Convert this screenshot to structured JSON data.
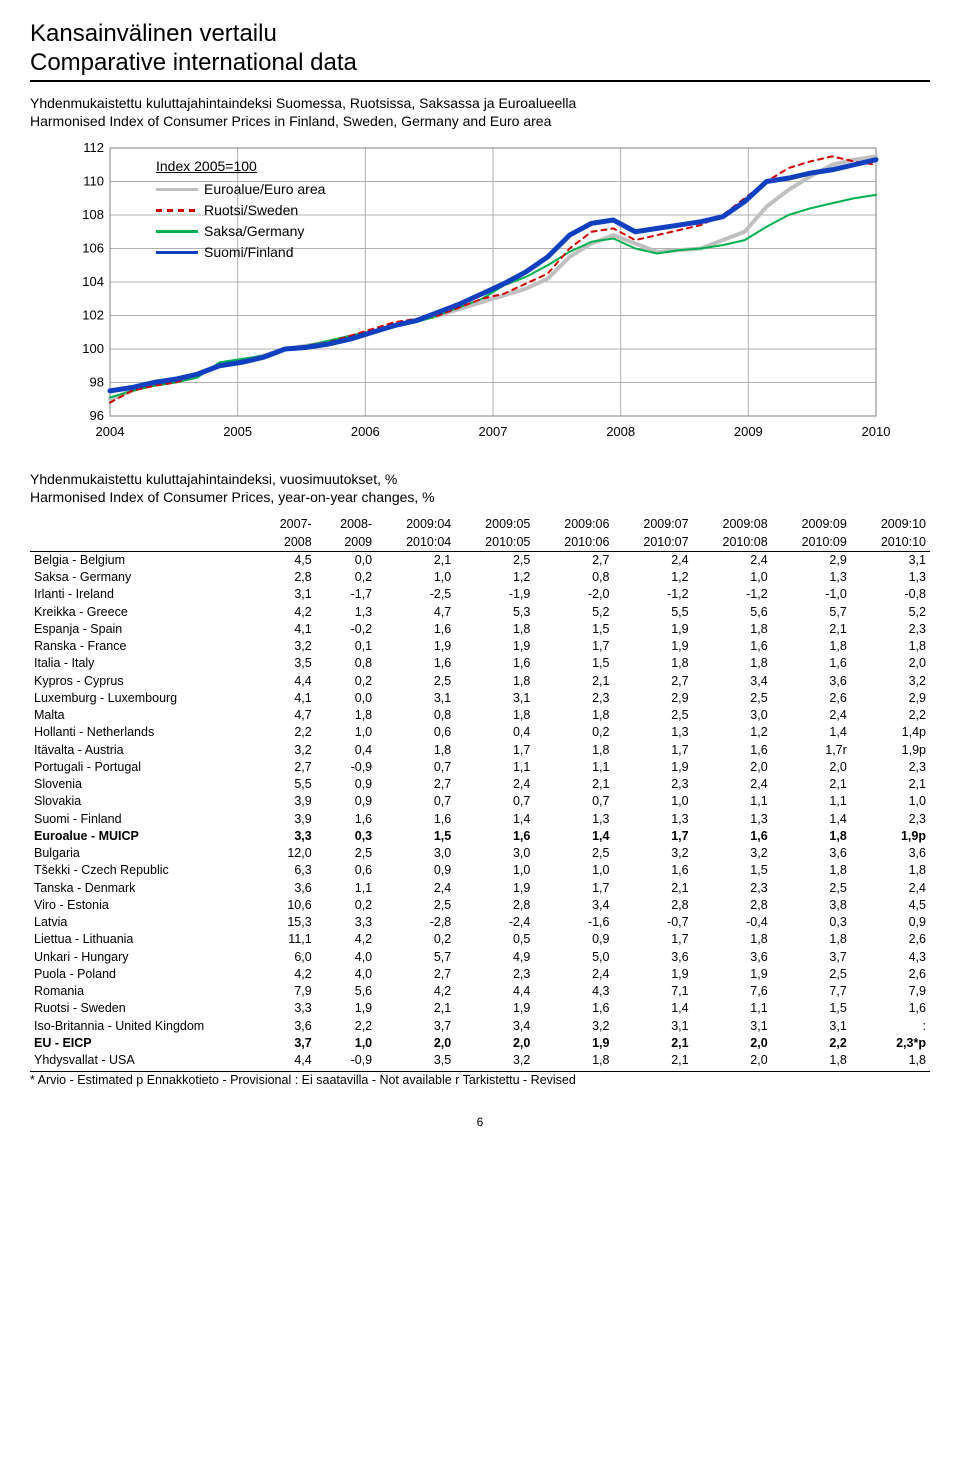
{
  "title": {
    "line1": "Kansainvälinen vertailu",
    "line2": "Comparative international data"
  },
  "chart_intro": {
    "line1": "Yhdenmukaistettu kuluttajahintaindeksi Suomessa, Ruotsissa, Saksassa ja Euroalueella",
    "line2": "Harmonised Index of Consumer Prices in Finland, Sweden, Germany and Euro area"
  },
  "chart": {
    "index_title": "Index 2005=100",
    "legend": [
      {
        "label": "Euroalue/Euro area",
        "color": "#c0c0c0",
        "dash": "0"
      },
      {
        "label": "Ruotsi/Sweden",
        "color": "#d00000",
        "dash": "5,5"
      },
      {
        "label": "Saksa/Germany",
        "color": "#00b050",
        "dash": "0"
      },
      {
        "label": "Suomi/Finland",
        "color": "#1040c0",
        "dash": "0"
      }
    ],
    "x_years": [
      "2004",
      "2005",
      "2006",
      "2007",
      "2008",
      "2009",
      "2010"
    ],
    "y_ticks": [
      "96",
      "98",
      "100",
      "102",
      "104",
      "106",
      "108",
      "110",
      "112"
    ],
    "y_min": 96,
    "y_max": 112,
    "background_color": "#ffffff",
    "grid_color": "#b0b0b0",
    "line_width": {
      "euro": 4,
      "sweden": 2,
      "germany": 2,
      "finland": 5
    },
    "series": {
      "euro": [
        97.0,
        97.5,
        98.0,
        98.1,
        98.5,
        99.0,
        99.3,
        99.6,
        100.0,
        100.2,
        100.4,
        100.6,
        101.0,
        101.4,
        101.7,
        102.0,
        102.4,
        102.8,
        103.2,
        103.6,
        104.2,
        105.5,
        106.3,
        106.8,
        106.3,
        105.8,
        105.9,
        106.0,
        106.5,
        107.0,
        108.5,
        109.5,
        110.3,
        111.0,
        111.3,
        111.5
      ],
      "sweden": [
        96.8,
        97.5,
        97.8,
        98.0,
        98.5,
        99.0,
        99.3,
        99.5,
        100.0,
        100.2,
        100.4,
        100.8,
        101.2,
        101.6,
        101.8,
        102.0,
        102.5,
        103.0,
        103.3,
        103.9,
        104.5,
        106.0,
        107.0,
        107.2,
        106.5,
        106.8,
        107.1,
        107.4,
        108.0,
        109.0,
        110.0,
        110.8,
        111.2,
        111.5,
        111.2,
        111.0
      ],
      "germany": [
        97.1,
        97.5,
        97.8,
        98.0,
        98.3,
        99.2,
        99.4,
        99.6,
        100.0,
        100.2,
        100.5,
        100.8,
        101.1,
        101.4,
        101.6,
        102.0,
        102.5,
        103.0,
        103.8,
        104.3,
        105.0,
        105.8,
        106.4,
        106.6,
        106.0,
        105.7,
        105.9,
        106.0,
        106.2,
        106.5,
        107.3,
        108.0,
        108.4,
        108.7,
        109.0,
        109.2
      ],
      "finland": [
        97.5,
        97.7,
        98.0,
        98.2,
        98.5,
        99.0,
        99.2,
        99.5,
        100.0,
        100.1,
        100.3,
        100.6,
        101.0,
        101.4,
        101.7,
        102.2,
        102.7,
        103.3,
        103.9,
        104.6,
        105.5,
        106.8,
        107.5,
        107.7,
        107.0,
        107.2,
        107.4,
        107.6,
        107.9,
        108.8,
        110.0,
        110.2,
        110.5,
        110.7,
        111.0,
        111.3
      ]
    }
  },
  "table_intro": {
    "line1": "Yhdenmukaistettu kuluttajahintaindeksi, vuosimuutokset, %",
    "line2": "Harmonised Index of Consumer Prices, year-on-year changes, %"
  },
  "headers_top": [
    "2007-",
    "2008-",
    "2009:04",
    "2009:05",
    "2009:06",
    "2009:07",
    "2009:08",
    "2009:09",
    "2009:10"
  ],
  "headers_bottom": [
    "2008",
    "2009",
    "2010:04",
    "2010:05",
    "2010:06",
    "2010:07",
    "2010:08",
    "2010:09",
    "2010:10"
  ],
  "rows": [
    {
      "name": "Belgia - Belgium",
      "vals": [
        "4,5",
        "0,0",
        "2,1",
        "2,5",
        "2,7",
        "2,4",
        "2,4",
        "2,9",
        "3,1"
      ]
    },
    {
      "name": "Saksa - Germany",
      "vals": [
        "2,8",
        "0,2",
        "1,0",
        "1,2",
        "0,8",
        "1,2",
        "1,0",
        "1,3",
        "1,3"
      ]
    },
    {
      "name": "Irlanti - Ireland",
      "vals": [
        "3,1",
        "-1,7",
        "-2,5",
        "-1,9",
        "-2,0",
        "-1,2",
        "-1,2",
        "-1,0",
        "-0,8"
      ]
    },
    {
      "name": "Kreikka - Greece",
      "vals": [
        "4,2",
        "1,3",
        "4,7",
        "5,3",
        "5,2",
        "5,5",
        "5,6",
        "5,7",
        "5,2"
      ]
    },
    {
      "name": "Espanja - Spain",
      "vals": [
        "4,1",
        "-0,2",
        "1,6",
        "1,8",
        "1,5",
        "1,9",
        "1,8",
        "2,1",
        "2,3"
      ]
    },
    {
      "name": "Ranska - France",
      "vals": [
        "3,2",
        "0,1",
        "1,9",
        "1,9",
        "1,7",
        "1,9",
        "1,6",
        "1,8",
        "1,8"
      ]
    },
    {
      "name": "Italia - Italy",
      "vals": [
        "3,5",
        "0,8",
        "1,6",
        "1,6",
        "1,5",
        "1,8",
        "1,8",
        "1,6",
        "2,0"
      ]
    },
    {
      "name": "Kypros - Cyprus",
      "vals": [
        "4,4",
        "0,2",
        "2,5",
        "1,8",
        "2,1",
        "2,7",
        "3,4",
        "3,6",
        "3,2"
      ]
    },
    {
      "name": "Luxemburg - Luxembourg",
      "vals": [
        "4,1",
        "0,0",
        "3,1",
        "3,1",
        "2,3",
        "2,9",
        "2,5",
        "2,6",
        "2,9"
      ]
    },
    {
      "name": "Malta",
      "vals": [
        "4,7",
        "1,8",
        "0,8",
        "1,8",
        "1,8",
        "2,5",
        "3,0",
        "2,4",
        "2,2"
      ]
    },
    {
      "name": "Hollanti - Netherlands",
      "vals": [
        "2,2",
        "1,0",
        "0,6",
        "0,4",
        "0,2",
        "1,3",
        "1,2",
        "1,4",
        "1,4p"
      ]
    },
    {
      "name": "Itävalta - Austria",
      "vals": [
        "3,2",
        "0,4",
        "1,8",
        "1,7",
        "1,8",
        "1,7",
        "1,6",
        "1,7r",
        "1,9p"
      ]
    },
    {
      "name": "Portugali - Portugal",
      "vals": [
        "2,7",
        "-0,9",
        "0,7",
        "1,1",
        "1,1",
        "1,9",
        "2,0",
        "2,0",
        "2,3"
      ]
    },
    {
      "name": "Slovenia",
      "vals": [
        "5,5",
        "0,9",
        "2,7",
        "2,4",
        "2,1",
        "2,3",
        "2,4",
        "2,1",
        "2,1"
      ]
    },
    {
      "name": "Slovakia",
      "vals": [
        "3,9",
        "0,9",
        "0,7",
        "0,7",
        "0,7",
        "1,0",
        "1,1",
        "1,1",
        "1,0"
      ]
    },
    {
      "name": "Suomi - Finland",
      "vals": [
        "3,9",
        "1,6",
        "1,6",
        "1,4",
        "1,3",
        "1,3",
        "1,3",
        "1,4",
        "2,3"
      ]
    },
    {
      "name": "Euroalue - MUICP",
      "vals": [
        "3,3",
        "0,3",
        "1,5",
        "1,6",
        "1,4",
        "1,7",
        "1,6",
        "1,8",
        "1,9p"
      ],
      "bold": true
    },
    {
      "name": "Bulgaria",
      "vals": [
        "12,0",
        "2,5",
        "3,0",
        "3,0",
        "2,5",
        "3,2",
        "3,2",
        "3,6",
        "3,6"
      ]
    },
    {
      "name": "Tšekki - Czech Republic",
      "vals": [
        "6,3",
        "0,6",
        "0,9",
        "1,0",
        "1,0",
        "1,6",
        "1,5",
        "1,8",
        "1,8"
      ]
    },
    {
      "name": "Tanska - Denmark",
      "vals": [
        "3,6",
        "1,1",
        "2,4",
        "1,9",
        "1,7",
        "2,1",
        "2,3",
        "2,5",
        "2,4"
      ]
    },
    {
      "name": "Viro - Estonia",
      "vals": [
        "10,6",
        "0,2",
        "2,5",
        "2,8",
        "3,4",
        "2,8",
        "2,8",
        "3,8",
        "4,5"
      ]
    },
    {
      "name": "Latvia",
      "vals": [
        "15,3",
        "3,3",
        "-2,8",
        "-2,4",
        "-1,6",
        "-0,7",
        "-0,4",
        "0,3",
        "0,9"
      ]
    },
    {
      "name": "Liettua - Lithuania",
      "vals": [
        "11,1",
        "4,2",
        "0,2",
        "0,5",
        "0,9",
        "1,7",
        "1,8",
        "1,8",
        "2,6"
      ]
    },
    {
      "name": "Unkari - Hungary",
      "vals": [
        "6,0",
        "4,0",
        "5,7",
        "4,9",
        "5,0",
        "3,6",
        "3,6",
        "3,7",
        "4,3"
      ]
    },
    {
      "name": "Puola - Poland",
      "vals": [
        "4,2",
        "4,0",
        "2,7",
        "2,3",
        "2,4",
        "1,9",
        "1,9",
        "2,5",
        "2,6"
      ]
    },
    {
      "name": "Romania",
      "vals": [
        "7,9",
        "5,6",
        "4,2",
        "4,4",
        "4,3",
        "7,1",
        "7,6",
        "7,7",
        "7,9"
      ]
    },
    {
      "name": "Ruotsi - Sweden",
      "vals": [
        "3,3",
        "1,9",
        "2,1",
        "1,9",
        "1,6",
        "1,4",
        "1,1",
        "1,5",
        "1,6"
      ]
    },
    {
      "name": "Iso-Britannia - United Kingdom",
      "vals": [
        "3,6",
        "2,2",
        "3,7",
        "3,4",
        "3,2",
        "3,1",
        "3,1",
        "3,1",
        ":"
      ]
    },
    {
      "name": "EU - EICP",
      "vals": [
        "3,7",
        "1,0",
        "2,0",
        "2,0",
        "1,9",
        "2,1",
        "2,0",
        "2,2",
        "2,3*p"
      ],
      "bold": true
    },
    {
      "name": "Yhdysvallat - USA",
      "vals": [
        "4,4",
        "-0,9",
        "3,5",
        "3,2",
        "1,8",
        "2,1",
        "2,0",
        "1,8",
        "1,8"
      ]
    }
  ],
  "footnote": "* Arvio - Estimated    p  Ennakkotieto - Provisional     :   Ei saatavilla - Not available    r  Tarkistettu - Revised",
  "page_num": "6"
}
